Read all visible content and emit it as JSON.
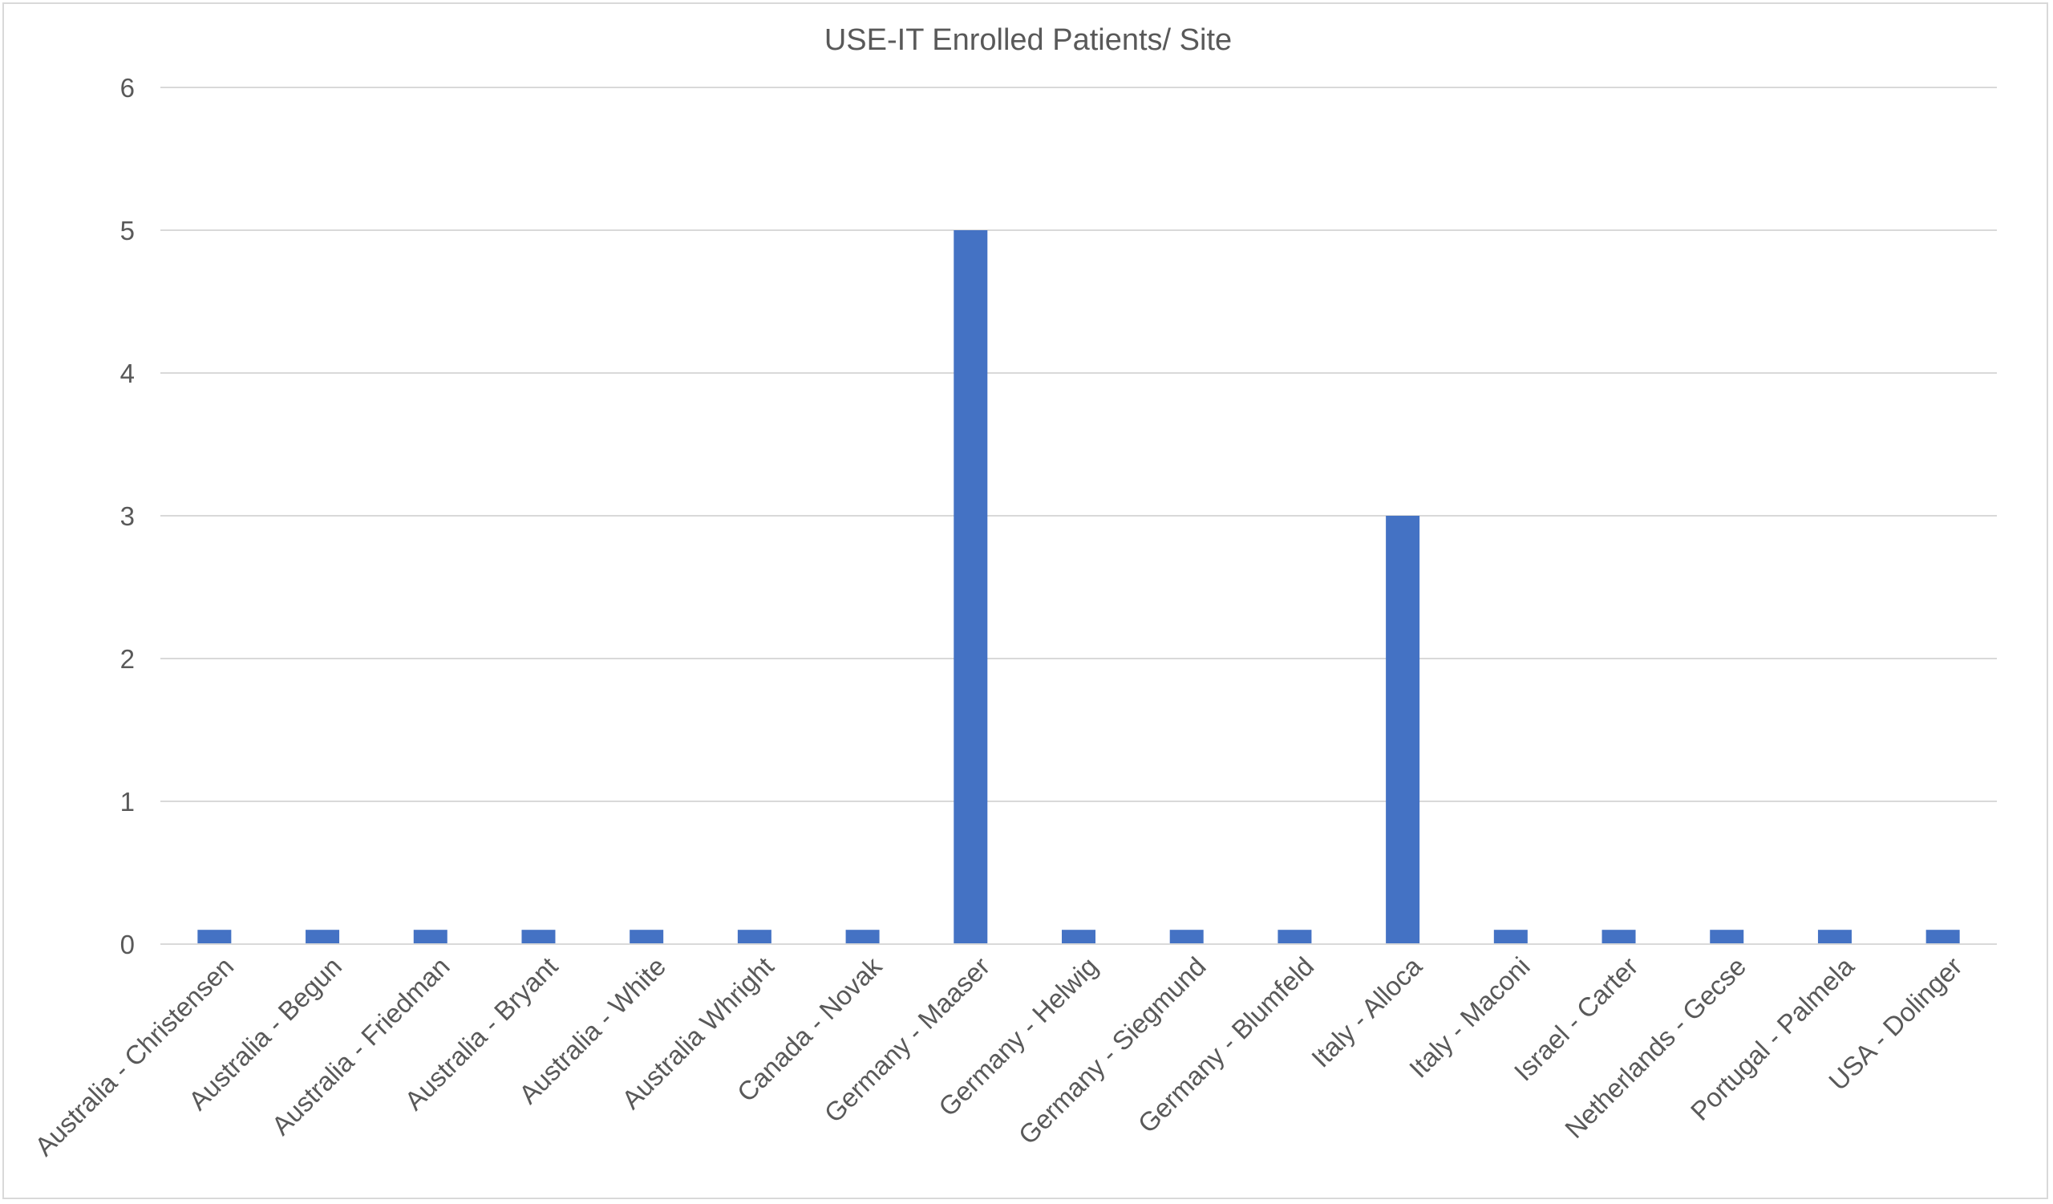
{
  "chart_data": {
    "type": "bar",
    "title": "USE-IT Enrolled Patients/ Site",
    "xlabel": "",
    "ylabel": "",
    "ylim": [
      0,
      6
    ],
    "yticks": [
      0,
      1,
      2,
      3,
      4,
      5,
      6
    ],
    "grid": true,
    "legend": "none",
    "bar_color": "#4472C4",
    "categories": [
      "Australia - Christensen",
      "Australia - Begun",
      "Australia - Friedman",
      "Australia - Bryant",
      "Australia - White",
      "Australia Whright",
      "Canada - Novak",
      "Germany - Maaser",
      "Germany - Helwig",
      "Germany - Siegmund",
      "Germany - Blumfeld",
      "Italy - Alloca",
      "Italy - Maconi",
      "Israel - Carter",
      "Netherlands - Gecse",
      "Portugal - Palmela",
      "USA - Dolinger"
    ],
    "values": [
      0.1,
      0.1,
      0.1,
      0.1,
      0.1,
      0.1,
      0.1,
      5,
      0.1,
      0.1,
      0.1,
      3,
      0.1,
      0.1,
      0.1,
      0.1,
      0.1
    ]
  }
}
